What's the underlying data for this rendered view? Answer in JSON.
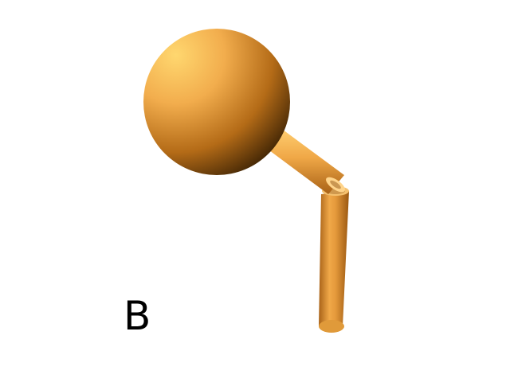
{
  "figure": {
    "label": "B",
    "colors": {
      "object_base": "#e8a040",
      "object_highlight": "#ffd070",
      "object_shadow": "#4a2a00",
      "background": "#ffffff"
    }
  }
}
